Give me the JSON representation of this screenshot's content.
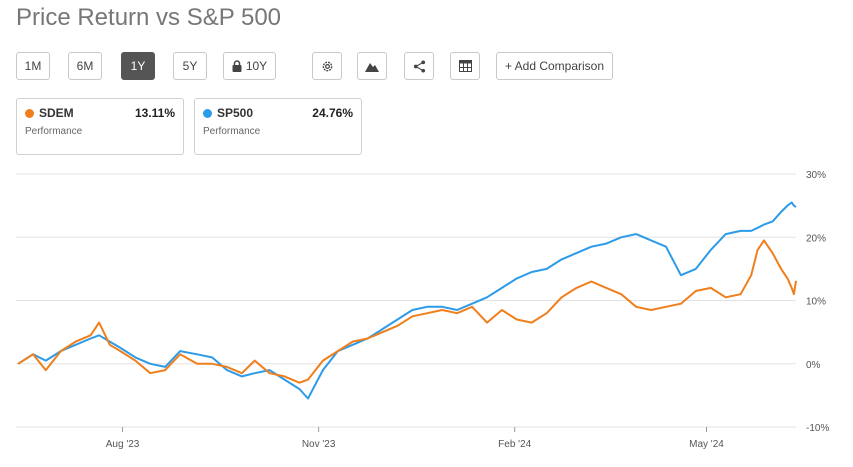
{
  "title": "Price Return vs S&P 500",
  "toolbar": {
    "ranges": [
      "1M",
      "6M",
      "1Y",
      "5Y",
      "10Y"
    ],
    "active_range": "1Y",
    "locked_range": "10Y",
    "icons": [
      "gear-icon",
      "mountain-chart-icon",
      "share-icon",
      "table-icon"
    ],
    "add_comparison": "+ Add Comparison"
  },
  "legend": [
    {
      "ticker": "SDEM",
      "value": "13.11%",
      "sub": "Performance",
      "color": "#f07e1b"
    },
    {
      "ticker": "SP500",
      "value": "24.76%",
      "sub": "Performance",
      "color": "#2d9be8"
    }
  ],
  "chart_data": {
    "type": "line",
    "x_range": [
      "2023-06-12",
      "2024-06-12"
    ],
    "x_ticks": [
      {
        "label": "Aug '23",
        "date": "2023-08-01"
      },
      {
        "label": "Nov '23",
        "date": "2023-11-01"
      },
      {
        "label": "Feb '24",
        "date": "2024-02-01"
      },
      {
        "label": "May '24",
        "date": "2024-05-01"
      }
    ],
    "y_ticks": [
      {
        "label": "30%",
        "value": 30
      },
      {
        "label": "20%",
        "value": 20
      },
      {
        "label": "10%",
        "value": 10
      },
      {
        "label": "0%",
        "value": 0
      },
      {
        "label": "-10%",
        "value": -10
      }
    ],
    "ylim": [
      -10,
      30
    ],
    "grid": true,
    "series": [
      {
        "name": "SDEM",
        "color": "#f07e1b",
        "points": [
          [
            "2023-06-13",
            0
          ],
          [
            "2023-06-20",
            1.5
          ],
          [
            "2023-06-26",
            -1
          ],
          [
            "2023-07-03",
            2
          ],
          [
            "2023-07-10",
            3.5
          ],
          [
            "2023-07-17",
            4.5
          ],
          [
            "2023-07-21",
            6.5
          ],
          [
            "2023-07-26",
            3
          ],
          [
            "2023-07-31",
            2
          ],
          [
            "2023-08-07",
            0.5
          ],
          [
            "2023-08-14",
            -1.5
          ],
          [
            "2023-08-21",
            -1
          ],
          [
            "2023-08-28",
            1.5
          ],
          [
            "2023-09-05",
            0
          ],
          [
            "2023-09-12",
            0
          ],
          [
            "2023-09-19",
            -0.5
          ],
          [
            "2023-09-26",
            -1.5
          ],
          [
            "2023-10-02",
            0.5
          ],
          [
            "2023-10-09",
            -1.5
          ],
          [
            "2023-10-16",
            -2
          ],
          [
            "2023-10-23",
            -3
          ],
          [
            "2023-10-27",
            -2.5
          ],
          [
            "2023-11-03",
            0.5
          ],
          [
            "2023-11-10",
            2
          ],
          [
            "2023-11-17",
            3.5
          ],
          [
            "2023-11-24",
            4
          ],
          [
            "2023-12-01",
            5
          ],
          [
            "2023-12-08",
            6
          ],
          [
            "2023-12-15",
            7.5
          ],
          [
            "2023-12-22",
            8
          ],
          [
            "2023-12-29",
            8.5
          ],
          [
            "2024-01-05",
            8
          ],
          [
            "2024-01-12",
            9
          ],
          [
            "2024-01-19",
            6.5
          ],
          [
            "2024-01-26",
            8.5
          ],
          [
            "2024-02-02",
            7
          ],
          [
            "2024-02-09",
            6.5
          ],
          [
            "2024-02-16",
            8
          ],
          [
            "2024-02-23",
            10.5
          ],
          [
            "2024-03-01",
            12
          ],
          [
            "2024-03-08",
            13
          ],
          [
            "2024-03-15",
            12
          ],
          [
            "2024-03-22",
            11
          ],
          [
            "2024-03-29",
            9
          ],
          [
            "2024-04-05",
            8.5
          ],
          [
            "2024-04-12",
            9
          ],
          [
            "2024-04-19",
            9.5
          ],
          [
            "2024-04-26",
            11.5
          ],
          [
            "2024-05-03",
            12
          ],
          [
            "2024-05-10",
            10.5
          ],
          [
            "2024-05-17",
            11
          ],
          [
            "2024-05-22",
            14
          ],
          [
            "2024-05-25",
            18
          ],
          [
            "2024-05-28",
            19.5
          ],
          [
            "2024-06-01",
            17.5
          ],
          [
            "2024-06-05",
            15
          ],
          [
            "2024-06-08",
            13.5
          ],
          [
            "2024-06-10",
            12
          ],
          [
            "2024-06-11",
            11
          ],
          [
            "2024-06-12",
            13.11
          ]
        ]
      },
      {
        "name": "SP500",
        "color": "#2d9be8",
        "points": [
          [
            "2023-06-13",
            0
          ],
          [
            "2023-06-20",
            1.5
          ],
          [
            "2023-06-26",
            0.5
          ],
          [
            "2023-07-03",
            2
          ],
          [
            "2023-07-10",
            3
          ],
          [
            "2023-07-17",
            4
          ],
          [
            "2023-07-21",
            4.5
          ],
          [
            "2023-07-26",
            3.5
          ],
          [
            "2023-07-31",
            2.5
          ],
          [
            "2023-08-07",
            1
          ],
          [
            "2023-08-14",
            0
          ],
          [
            "2023-08-21",
            -0.5
          ],
          [
            "2023-08-28",
            2
          ],
          [
            "2023-09-05",
            1.5
          ],
          [
            "2023-09-12",
            1
          ],
          [
            "2023-09-19",
            -1
          ],
          [
            "2023-09-26",
            -2
          ],
          [
            "2023-10-02",
            -1.5
          ],
          [
            "2023-10-09",
            -1
          ],
          [
            "2023-10-16",
            -2.5
          ],
          [
            "2023-10-23",
            -4
          ],
          [
            "2023-10-27",
            -5.5
          ],
          [
            "2023-11-03",
            -1
          ],
          [
            "2023-11-10",
            2
          ],
          [
            "2023-11-17",
            3
          ],
          [
            "2023-11-24",
            4
          ],
          [
            "2023-12-01",
            5.5
          ],
          [
            "2023-12-08",
            7
          ],
          [
            "2023-12-15",
            8.5
          ],
          [
            "2023-12-22",
            9
          ],
          [
            "2023-12-29",
            9
          ],
          [
            "2024-01-05",
            8.5
          ],
          [
            "2024-01-12",
            9.5
          ],
          [
            "2024-01-19",
            10.5
          ],
          [
            "2024-01-26",
            12
          ],
          [
            "2024-02-02",
            13.5
          ],
          [
            "2024-02-09",
            14.5
          ],
          [
            "2024-02-16",
            15
          ],
          [
            "2024-02-23",
            16.5
          ],
          [
            "2024-03-01",
            17.5
          ],
          [
            "2024-03-08",
            18.5
          ],
          [
            "2024-03-15",
            19
          ],
          [
            "2024-03-22",
            20
          ],
          [
            "2024-03-29",
            20.5
          ],
          [
            "2024-04-05",
            19.5
          ],
          [
            "2024-04-12",
            18.5
          ],
          [
            "2024-04-19",
            14
          ],
          [
            "2024-04-26",
            15
          ],
          [
            "2024-05-03",
            18
          ],
          [
            "2024-05-10",
            20.5
          ],
          [
            "2024-05-17",
            21
          ],
          [
            "2024-05-22",
            21
          ],
          [
            "2024-05-25",
            21.5
          ],
          [
            "2024-05-28",
            22
          ],
          [
            "2024-06-01",
            22.5
          ],
          [
            "2024-06-05",
            24
          ],
          [
            "2024-06-08",
            25
          ],
          [
            "2024-06-10",
            25.5
          ],
          [
            "2024-06-11",
            25
          ],
          [
            "2024-06-12",
            24.76
          ]
        ]
      }
    ]
  }
}
